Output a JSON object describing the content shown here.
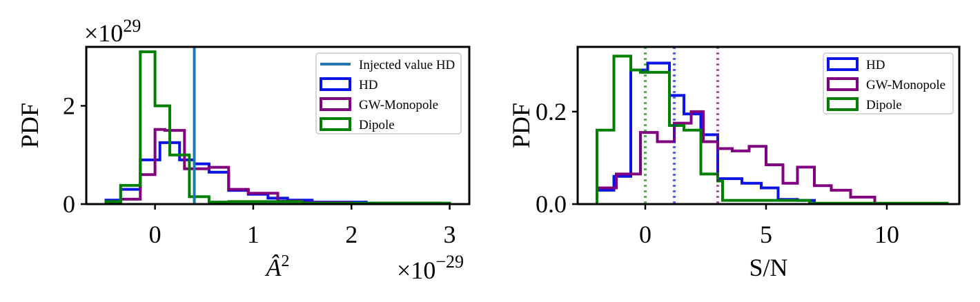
{
  "chart_data": [
    {
      "type": "histogram",
      "xlabel": "Â",
      "xlabel_sup": "2",
      "ylabel": "PDF",
      "x_multiplier": {
        "base": "×10",
        "exp": "−29"
      },
      "y_multiplier": {
        "base": "×10",
        "exp": "29"
      },
      "xlim": [
        -0.7,
        3.2
      ],
      "ylim": [
        0,
        3.2
      ],
      "xticks": [
        0,
        1,
        2,
        3
      ],
      "xtick_labels": [
        "0",
        "1",
        "2",
        "3"
      ],
      "yticks": [
        0,
        2
      ],
      "ytick_labels": [
        "0",
        "2"
      ],
      "grid": false,
      "legend_position": "top-right",
      "vlines": [
        {
          "name": "Injected value HD",
          "x": 0.4,
          "color": "#1f77b4",
          "style": "solid",
          "in_legend": true
        }
      ],
      "series": [
        {
          "name": "HD",
          "color": "#0a14e6",
          "edges": [
            -0.5,
            -0.35,
            -0.15,
            0.05,
            0.25,
            0.4,
            0.55,
            0.75,
            0.95,
            1.15,
            1.35,
            1.6,
            2.15,
            2.9
          ],
          "values": [
            0.08,
            0.3,
            0.9,
            1.25,
            0.9,
            0.82,
            0.65,
            0.28,
            0.2,
            0.12,
            0.08,
            0.04,
            0.02
          ]
        },
        {
          "name": "GW-Monopole",
          "color": "#800080",
          "edges": [
            -0.5,
            -0.35,
            -0.15,
            -0.1,
            0.0,
            0.1,
            0.2,
            0.3,
            0.55,
            0.75,
            0.95,
            1.25,
            1.5,
            2.0,
            2.9
          ],
          "values": [
            0.04,
            0.1,
            0.6,
            0.6,
            1.52,
            1.5,
            1.5,
            0.72,
            0.75,
            0.3,
            0.22,
            0.06,
            0.03,
            0.02
          ]
        },
        {
          "name": "Dipole",
          "color": "#008000",
          "edges": [
            -0.5,
            -0.35,
            -0.15,
            0.0,
            0.15,
            0.35,
            0.55,
            0.75,
            1.5,
            3.0
          ],
          "values": [
            0.05,
            0.38,
            3.1,
            2.0,
            1.0,
            0.15,
            0.04,
            0.05,
            0.02
          ]
        }
      ]
    },
    {
      "type": "histogram",
      "xlabel": "S/N",
      "ylabel": "PDF",
      "xlim": [
        -2.8,
        13.0
      ],
      "ylim": [
        0,
        0.34
      ],
      "xticks": [
        0,
        5,
        10
      ],
      "xtick_labels": [
        "0",
        "5",
        "10"
      ],
      "yticks": [
        0.0,
        0.2
      ],
      "ytick_labels": [
        "0.0",
        "0.2"
      ],
      "grid": false,
      "legend_position": "top-right",
      "vlines": [
        {
          "x": 0.0,
          "color": "#008000",
          "style": "dotted"
        },
        {
          "x": 1.2,
          "color": "#0a14e6",
          "style": "dotted"
        },
        {
          "x": 3.0,
          "color": "#800080",
          "style": "dotted"
        }
      ],
      "series": [
        {
          "name": "HD",
          "color": "#0a14e6",
          "edges": [
            -2.0,
            -1.3,
            -0.6,
            0.1,
            1.0,
            1.6,
            2.3,
            3.0,
            4.0,
            4.8,
            5.5,
            6.3,
            7.0
          ],
          "values": [
            0.03,
            0.06,
            0.29,
            0.305,
            0.235,
            0.195,
            0.15,
            0.055,
            0.045,
            0.035,
            0.01,
            0.008
          ]
        },
        {
          "name": "GW-Monopole",
          "color": "#800080",
          "edges": [
            -2.0,
            -1.2,
            -0.2,
            0.5,
            1.2,
            1.9,
            2.4,
            3.0,
            3.6,
            4.3,
            5.0,
            5.7,
            6.3,
            7.0,
            7.7,
            8.5,
            9.5
          ],
          "values": [
            0.035,
            0.065,
            0.155,
            0.135,
            0.175,
            0.2,
            0.135,
            0.12,
            0.115,
            0.125,
            0.085,
            0.045,
            0.08,
            0.04,
            0.03,
            0.015
          ]
        },
        {
          "name": "Dipole",
          "color": "#008000",
          "edges": [
            -2.0,
            -1.3,
            -0.6,
            -0.2,
            0.3,
            1.0,
            1.6,
            2.3,
            3.0,
            3.2,
            6.8,
            12.5
          ],
          "values": [
            0.16,
            0.32,
            0.29,
            0.285,
            0.285,
            0.17,
            0.16,
            0.065,
            0.05,
            0.008,
            0.002
          ]
        }
      ]
    }
  ]
}
